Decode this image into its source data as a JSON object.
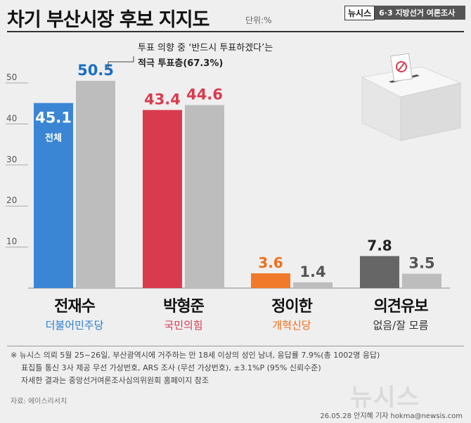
{
  "header": {
    "title": "차기 부산시장 후보 지지도",
    "unit": "단위:%",
    "brand_name": "뉴시스",
    "brand_series": "6·3 지방선거 여론조사"
  },
  "annotation": {
    "line1": "투표 의향 중 ‘반드시 투표하겠다’는",
    "line2": "적극 투표층(67.3%)"
  },
  "chart_data": {
    "type": "bar",
    "title": "차기 부산시장 후보 지지도",
    "ylim": [
      0,
      55
    ],
    "yticks": [
      10,
      20,
      30,
      40,
      50
    ],
    "grid": true,
    "series": [
      {
        "name": "전체",
        "values": [
          45.1,
          43.4,
          3.6,
          7.8
        ]
      },
      {
        "name": "적극 투표층(67.3%)",
        "values": [
          50.5,
          44.6,
          1.4,
          3.5
        ]
      }
    ],
    "categories": [
      {
        "name": "전재수",
        "party": "더불어민주당",
        "primary_color": "#3a86d4",
        "value_color": "#1a6fc4",
        "party_color": "#2a7fd0"
      },
      {
        "name": "박형준",
        "party": "국민의힘",
        "primary_color": "#d93a4e",
        "value_color": "#d93a4e",
        "party_color": "#d93a4e"
      },
      {
        "name": "정이한",
        "party": "개혁신당",
        "primary_color": "#f07a2a",
        "value_color": "#ee6f1a",
        "party_color": "#ee6f1a"
      },
      {
        "name": "의견유보",
        "party": "없음/잘 모름",
        "primary_color": "#666666",
        "value_color": "#222222",
        "party_color": "#333333"
      }
    ],
    "secondary_color": "#bdbdbd",
    "secondary_value_color": "#555555",
    "inbar_label": "전체"
  },
  "notes": {
    "line1": "※ 뉴시스 의뢰 5월 25~26일, 부산광역시에 거주하는 만 18세 이상의 성인 남녀, 응답률 7.9%(총 1002명 응답)",
    "line2": "표집틀 통신 3사 제공 무선 가상번호, ARS 조사 (무선 가상번호), ±3.1%P (95% 신뢰수준)",
    "line3": "자세한 결과는 중앙선거여론조사심의위원회 홈페이지 참조"
  },
  "source": "자료: 에이스리서치",
  "watermark": "뉴시스",
  "credit": "26.05.28 안지혜 기자 hokma@newsis.com"
}
